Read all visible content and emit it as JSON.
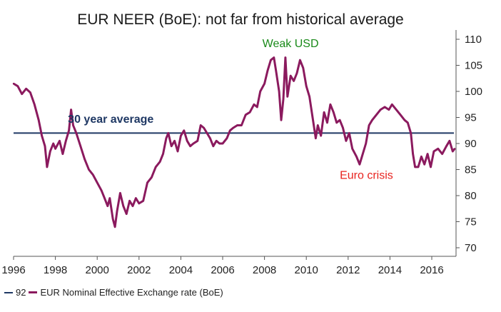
{
  "chart_data": {
    "type": "line",
    "title": "EUR NEER (BoE): not far from historical average",
    "xlabel": "",
    "ylabel": "",
    "xlim": [
      1996,
      2017.2
    ],
    "ylim": [
      68.5,
      111
    ],
    "x_ticks": [
      1996,
      1998,
      2000,
      2002,
      2004,
      2006,
      2008,
      2010,
      2012,
      2014,
      2016
    ],
    "x_tick_labels": [
      "1996",
      "1998",
      "2000",
      "2002",
      "2004",
      "2006",
      "2008",
      "2010",
      "2012",
      "2014",
      "2016"
    ],
    "y_ticks": [
      70,
      75,
      80,
      85,
      90,
      95,
      100,
      105,
      110
    ],
    "y_tick_labels": [
      "70",
      "75",
      "80",
      "85",
      "90",
      "95",
      "100",
      "105",
      "110"
    ],
    "y_axis_side": "right",
    "grid": false,
    "legend_position": "bottom-left",
    "series": [
      {
        "name": "92",
        "color": "#1f3864",
        "kind": "hline",
        "value": 92
      },
      {
        "name": "EUR Nominal Effective Exchange rate (BoE)",
        "color": "#8b1a5e",
        "kind": "line",
        "points": [
          [
            1996.0,
            101.5
          ],
          [
            1996.2,
            101.0
          ],
          [
            1996.4,
            99.5
          ],
          [
            1996.6,
            100.5
          ],
          [
            1996.8,
            99.8
          ],
          [
            1997.0,
            97.5
          ],
          [
            1997.2,
            94.5
          ],
          [
            1997.35,
            91.5
          ],
          [
            1997.5,
            89.5
          ],
          [
            1997.6,
            85.5
          ],
          [
            1997.75,
            88.5
          ],
          [
            1997.9,
            90.0
          ],
          [
            1998.0,
            89.0
          ],
          [
            1998.2,
            90.5
          ],
          [
            1998.35,
            88.0
          ],
          [
            1998.5,
            90.5
          ],
          [
            1998.65,
            92.5
          ],
          [
            1998.75,
            96.5
          ],
          [
            1998.85,
            93.5
          ],
          [
            1999.0,
            92.0
          ],
          [
            1999.2,
            89.5
          ],
          [
            1999.4,
            87.0
          ],
          [
            1999.6,
            85.0
          ],
          [
            1999.8,
            84.0
          ],
          [
            2000.0,
            82.5
          ],
          [
            2000.2,
            81.0
          ],
          [
            2000.35,
            79.5
          ],
          [
            2000.5,
            78.0
          ],
          [
            2000.6,
            79.5
          ],
          [
            2000.75,
            75.5
          ],
          [
            2000.85,
            74.0
          ],
          [
            2000.95,
            77.0
          ],
          [
            2001.1,
            80.5
          ],
          [
            2001.25,
            78.0
          ],
          [
            2001.4,
            76.5
          ],
          [
            2001.55,
            79.0
          ],
          [
            2001.7,
            78.0
          ],
          [
            2001.85,
            79.5
          ],
          [
            2002.0,
            78.5
          ],
          [
            2002.2,
            79.0
          ],
          [
            2002.4,
            82.5
          ],
          [
            2002.6,
            83.5
          ],
          [
            2002.8,
            85.5
          ],
          [
            2003.0,
            86.5
          ],
          [
            2003.15,
            88.0
          ],
          [
            2003.3,
            91.0
          ],
          [
            2003.4,
            92.0
          ],
          [
            2003.55,
            89.5
          ],
          [
            2003.7,
            90.5
          ],
          [
            2003.85,
            88.5
          ],
          [
            2004.0,
            91.5
          ],
          [
            2004.15,
            92.5
          ],
          [
            2004.3,
            90.5
          ],
          [
            2004.45,
            89.5
          ],
          [
            2004.6,
            90.0
          ],
          [
            2004.8,
            90.5
          ],
          [
            2004.95,
            93.5
          ],
          [
            2005.1,
            93.0
          ],
          [
            2005.25,
            92.0
          ],
          [
            2005.4,
            91.0
          ],
          [
            2005.55,
            89.5
          ],
          [
            2005.7,
            90.5
          ],
          [
            2005.85,
            90.0
          ],
          [
            2006.0,
            90.0
          ],
          [
            2006.2,
            91.0
          ],
          [
            2006.35,
            92.5
          ],
          [
            2006.5,
            93.0
          ],
          [
            2006.7,
            93.5
          ],
          [
            2006.9,
            93.5
          ],
          [
            2007.1,
            95.5
          ],
          [
            2007.3,
            96.0
          ],
          [
            2007.5,
            97.5
          ],
          [
            2007.65,
            97.0
          ],
          [
            2007.8,
            100.0
          ],
          [
            2008.0,
            101.5
          ],
          [
            2008.15,
            104.0
          ],
          [
            2008.3,
            106.0
          ],
          [
            2008.45,
            106.5
          ],
          [
            2008.55,
            104.0
          ],
          [
            2008.7,
            100.0
          ],
          [
            2008.8,
            94.5
          ],
          [
            2008.9,
            98.5
          ],
          [
            2009.0,
            106.5
          ],
          [
            2009.1,
            99.0
          ],
          [
            2009.25,
            103.0
          ],
          [
            2009.4,
            102.0
          ],
          [
            2009.55,
            103.5
          ],
          [
            2009.7,
            106.0
          ],
          [
            2009.85,
            104.5
          ],
          [
            2010.0,
            101.0
          ],
          [
            2010.15,
            99.0
          ],
          [
            2010.3,
            95.0
          ],
          [
            2010.45,
            91.0
          ],
          [
            2010.55,
            93.5
          ],
          [
            2010.7,
            91.5
          ],
          [
            2010.85,
            96.0
          ],
          [
            2011.0,
            94.0
          ],
          [
            2011.15,
            97.5
          ],
          [
            2011.3,
            96.0
          ],
          [
            2011.45,
            94.0
          ],
          [
            2011.6,
            94.5
          ],
          [
            2011.75,
            93.0
          ],
          [
            2011.9,
            90.5
          ],
          [
            2012.05,
            92.0
          ],
          [
            2012.2,
            89.0
          ],
          [
            2012.4,
            87.5
          ],
          [
            2012.55,
            86.0
          ],
          [
            2012.7,
            88.0
          ],
          [
            2012.85,
            90.0
          ],
          [
            2013.0,
            93.5
          ],
          [
            2013.15,
            94.5
          ],
          [
            2013.35,
            95.5
          ],
          [
            2013.55,
            96.5
          ],
          [
            2013.75,
            97.0
          ],
          [
            2013.95,
            96.5
          ],
          [
            2014.1,
            97.5
          ],
          [
            2014.3,
            96.5
          ],
          [
            2014.5,
            95.5
          ],
          [
            2014.7,
            94.5
          ],
          [
            2014.85,
            94.0
          ],
          [
            2015.0,
            92.0
          ],
          [
            2015.1,
            88.0
          ],
          [
            2015.2,
            85.5
          ],
          [
            2015.35,
            85.5
          ],
          [
            2015.5,
            87.5
          ],
          [
            2015.65,
            86.0
          ],
          [
            2015.8,
            88.0
          ],
          [
            2015.95,
            85.5
          ],
          [
            2016.1,
            88.5
          ],
          [
            2016.3,
            89.0
          ],
          [
            2016.5,
            88.0
          ],
          [
            2016.7,
            89.5
          ],
          [
            2016.85,
            90.5
          ],
          [
            2017.0,
            88.5
          ],
          [
            2017.1,
            89.0
          ]
        ]
      }
    ],
    "annotations": [
      {
        "text": "30 year average",
        "x": 1998.6,
        "y": 94.0,
        "color": "#1f3864"
      },
      {
        "text": "Weak USD",
        "x": 2007.9,
        "y": 108.5,
        "color": "#1a8a1a"
      },
      {
        "text": "Euro crisis",
        "x": 2011.6,
        "y": 83.2,
        "color": "#e8231f"
      }
    ]
  },
  "legend": {
    "items": [
      {
        "label": "92",
        "color": "#1f3864"
      },
      {
        "label": "EUR Nominal Effective Exchange rate (BoE)",
        "color": "#8b1a5e"
      }
    ]
  }
}
